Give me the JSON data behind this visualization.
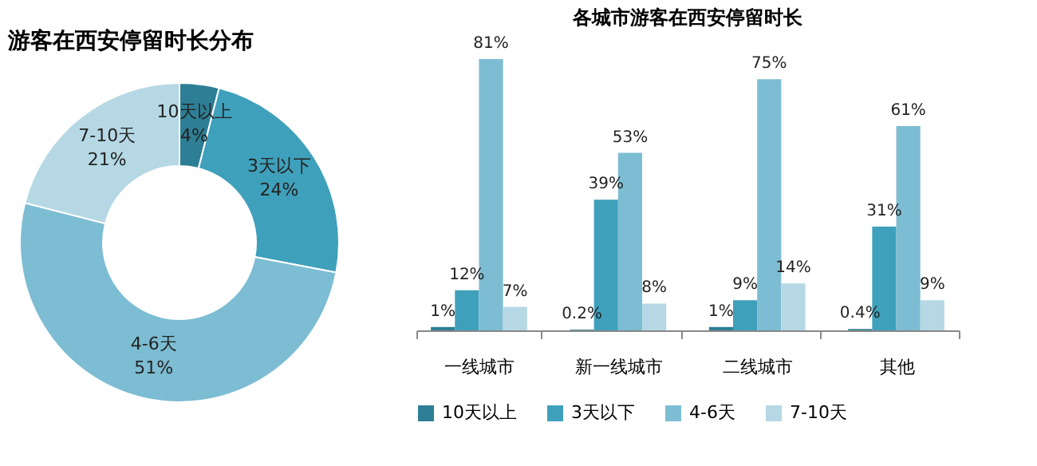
{
  "chart_data": [
    {
      "type": "donut",
      "title": "游客在西安停留时长分布",
      "categories": [
        "10天以上",
        "3天以下",
        "4-6天",
        "7-10天"
      ],
      "values": [
        4,
        24,
        51,
        21
      ],
      "colors": [
        "#2e7f95",
        "#3fa0bb",
        "#7dbdd3",
        "#b5d8e4"
      ],
      "value_labels": [
        "4%",
        "24%",
        "51%",
        "21%"
      ]
    },
    {
      "type": "bar",
      "title": "各城市游客在西安停留时长",
      "categories": [
        "一线城市",
        "新一线城市",
        "二线城市",
        "其他"
      ],
      "legend": "bottom",
      "series": [
        {
          "name": "10天以上",
          "color": "#2e7f95",
          "values": [
            1,
            0.2,
            1,
            0.4
          ],
          "value_labels": [
            "1%",
            "0.2%",
            "1%",
            "0.4%"
          ]
        },
        {
          "name": "3天以下",
          "color": "#3fa0bb",
          "values": [
            12,
            39,
            9,
            31
          ],
          "value_labels": [
            "12%",
            "39%",
            "9%",
            "31%"
          ]
        },
        {
          "name": "4-6天",
          "color": "#7dbdd3",
          "values": [
            81,
            53,
            75,
            61
          ],
          "value_labels": [
            "81%",
            "53%",
            "75%",
            "61%"
          ]
        },
        {
          "name": "7-10天",
          "color": "#b5d8e4",
          "values": [
            7,
            8,
            14,
            9
          ],
          "value_labels": [
            "7%",
            "8%",
            "14%",
            "9%"
          ]
        }
      ]
    }
  ]
}
